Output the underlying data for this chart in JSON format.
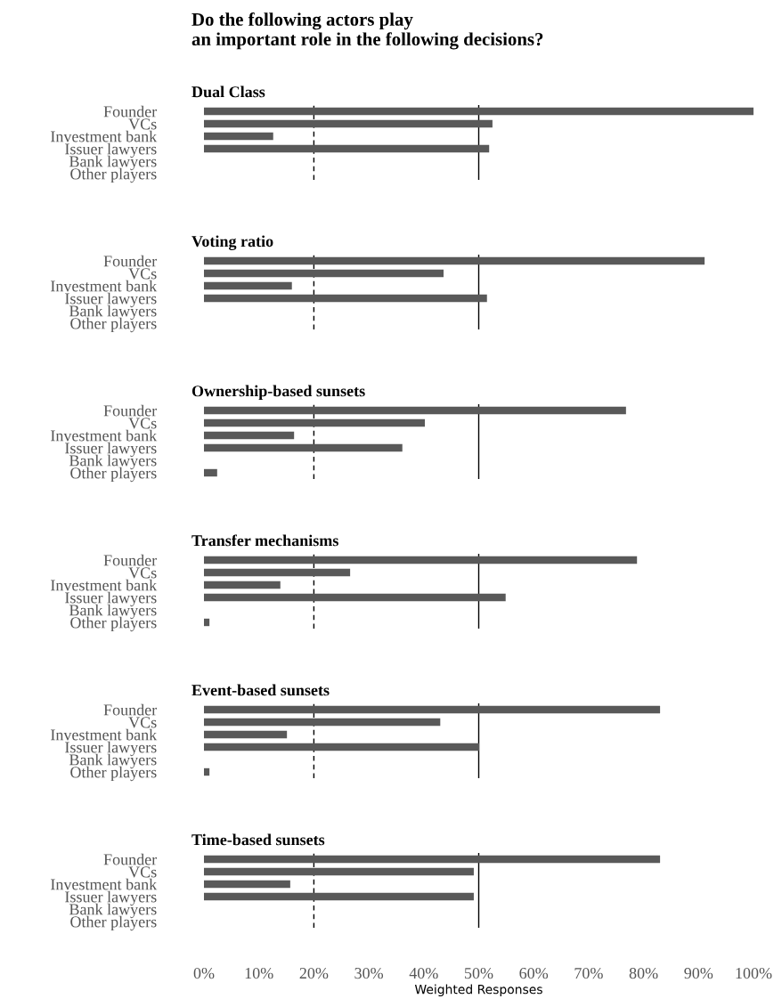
{
  "chart_data": [
    {
      "type": "bar",
      "orientation": "horizontal",
      "title": "Do the following actors play\nan important role in the following decisions?",
      "subtitle": "Dual Class",
      "categories": [
        "Founder",
        "VCs",
        "Investment bank",
        "Issuer lawyers",
        "Bank lawyers",
        "Other players"
      ],
      "values": [
        100,
        52.5,
        12.6,
        51.9,
        0,
        0
      ],
      "color": "#595959",
      "xlim": [
        0,
        100
      ],
      "tick_labels": "y",
      "grid": false,
      "legend": false,
      "ref_lines": [
        {
          "axis": "x",
          "value": 20,
          "line_style": "dashed",
          "color": "#000000"
        },
        {
          "axis": "x",
          "value": 50,
          "line_style": "solid",
          "color": "#000000"
        }
      ]
    },
    {
      "type": "bar",
      "orientation": "horizontal",
      "subtitle": "Voting ratio",
      "categories": [
        "Founder",
        "VCs",
        "Investment bank",
        "Issuer lawyers",
        "Bank lawyers",
        "Other players"
      ],
      "values": [
        91.1,
        43.6,
        16.0,
        51.5,
        0,
        0
      ],
      "color": "#595959",
      "xlim": [
        0,
        100
      ],
      "tick_labels": "y",
      "grid": false,
      "legend": false,
      "ref_lines": [
        {
          "axis": "x",
          "value": 20,
          "line_style": "dashed",
          "color": "#000000"
        },
        {
          "axis": "x",
          "value": 50,
          "line_style": "solid",
          "color": "#000000"
        }
      ]
    },
    {
      "type": "bar",
      "orientation": "horizontal",
      "subtitle": "Ownership-based sunsets",
      "categories": [
        "Founder",
        "VCs",
        "Investment bank",
        "Issuer lawyers",
        "Bank lawyers",
        "Other players"
      ],
      "values": [
        76.8,
        40.2,
        16.4,
        36.1,
        0,
        2.4
      ],
      "color": "#595959",
      "xlim": [
        0,
        100
      ],
      "tick_labels": "y",
      "grid": false,
      "legend": false,
      "ref_lines": [
        {
          "axis": "x",
          "value": 20,
          "line_style": "dashed",
          "color": "#000000"
        },
        {
          "axis": "x",
          "value": 50,
          "line_style": "solid",
          "color": "#000000"
        }
      ]
    },
    {
      "type": "bar",
      "orientation": "horizontal",
      "subtitle": "Transfer mechanisms",
      "categories": [
        "Founder",
        "VCs",
        "Investment bank",
        "Issuer lawyers",
        "Bank lawyers",
        "Other players"
      ],
      "values": [
        78.8,
        26.6,
        13.9,
        54.9,
        0,
        1.0
      ],
      "color": "#595959",
      "xlim": [
        0,
        100
      ],
      "tick_labels": "y",
      "grid": false,
      "legend": false,
      "ref_lines": [
        {
          "axis": "x",
          "value": 20,
          "line_style": "dashed",
          "color": "#000000"
        },
        {
          "axis": "x",
          "value": 50,
          "line_style": "solid",
          "color": "#000000"
        }
      ]
    },
    {
      "type": "bar",
      "orientation": "horizontal",
      "subtitle": "Event-based sunsets",
      "categories": [
        "Founder",
        "VCs",
        "Investment bank",
        "Issuer lawyers",
        "Bank lawyers",
        "Other players"
      ],
      "values": [
        83.0,
        43.0,
        15.1,
        50.1,
        0,
        1.0
      ],
      "color": "#595959",
      "xlim": [
        0,
        100
      ],
      "tick_labels": "y",
      "grid": false,
      "legend": false,
      "ref_lines": [
        {
          "axis": "x",
          "value": 20,
          "line_style": "dashed",
          "color": "#000000"
        },
        {
          "axis": "x",
          "value": 50,
          "line_style": "solid",
          "color": "#000000"
        }
      ]
    },
    {
      "type": "bar",
      "orientation": "horizontal",
      "subtitle": "Time-based sunsets",
      "xlabel": "Weighted Responses",
      "categories": [
        "Founder",
        "VCs",
        "Investment bank",
        "Issuer lawyers",
        "Bank lawyers",
        "Other players"
      ],
      "values": [
        83.0,
        49.1,
        15.7,
        49.1,
        0,
        0
      ],
      "color": "#595959",
      "xlim": [
        0,
        100
      ],
      "xticks": [
        {
          "value": 0,
          "label": "0%"
        },
        {
          "value": 10,
          "label": "10%"
        },
        {
          "value": 20,
          "label": "20%"
        },
        {
          "value": 30,
          "label": "30%"
        },
        {
          "value": 40,
          "label": "40%"
        },
        {
          "value": 50,
          "label": "50%"
        },
        {
          "value": 60,
          "label": "60%"
        },
        {
          "value": 70,
          "label": "70%"
        },
        {
          "value": 80,
          "label": "80%"
        },
        {
          "value": 90,
          "label": "90%"
        },
        {
          "value": 100,
          "label": "100%"
        }
      ],
      "grid": false,
      "legend": false,
      "ref_lines": [
        {
          "axis": "x",
          "value": 20,
          "line_style": "dashed",
          "color": "#000000"
        },
        {
          "axis": "x",
          "value": 50,
          "line_style": "solid",
          "color": "#000000"
        }
      ]
    }
  ]
}
